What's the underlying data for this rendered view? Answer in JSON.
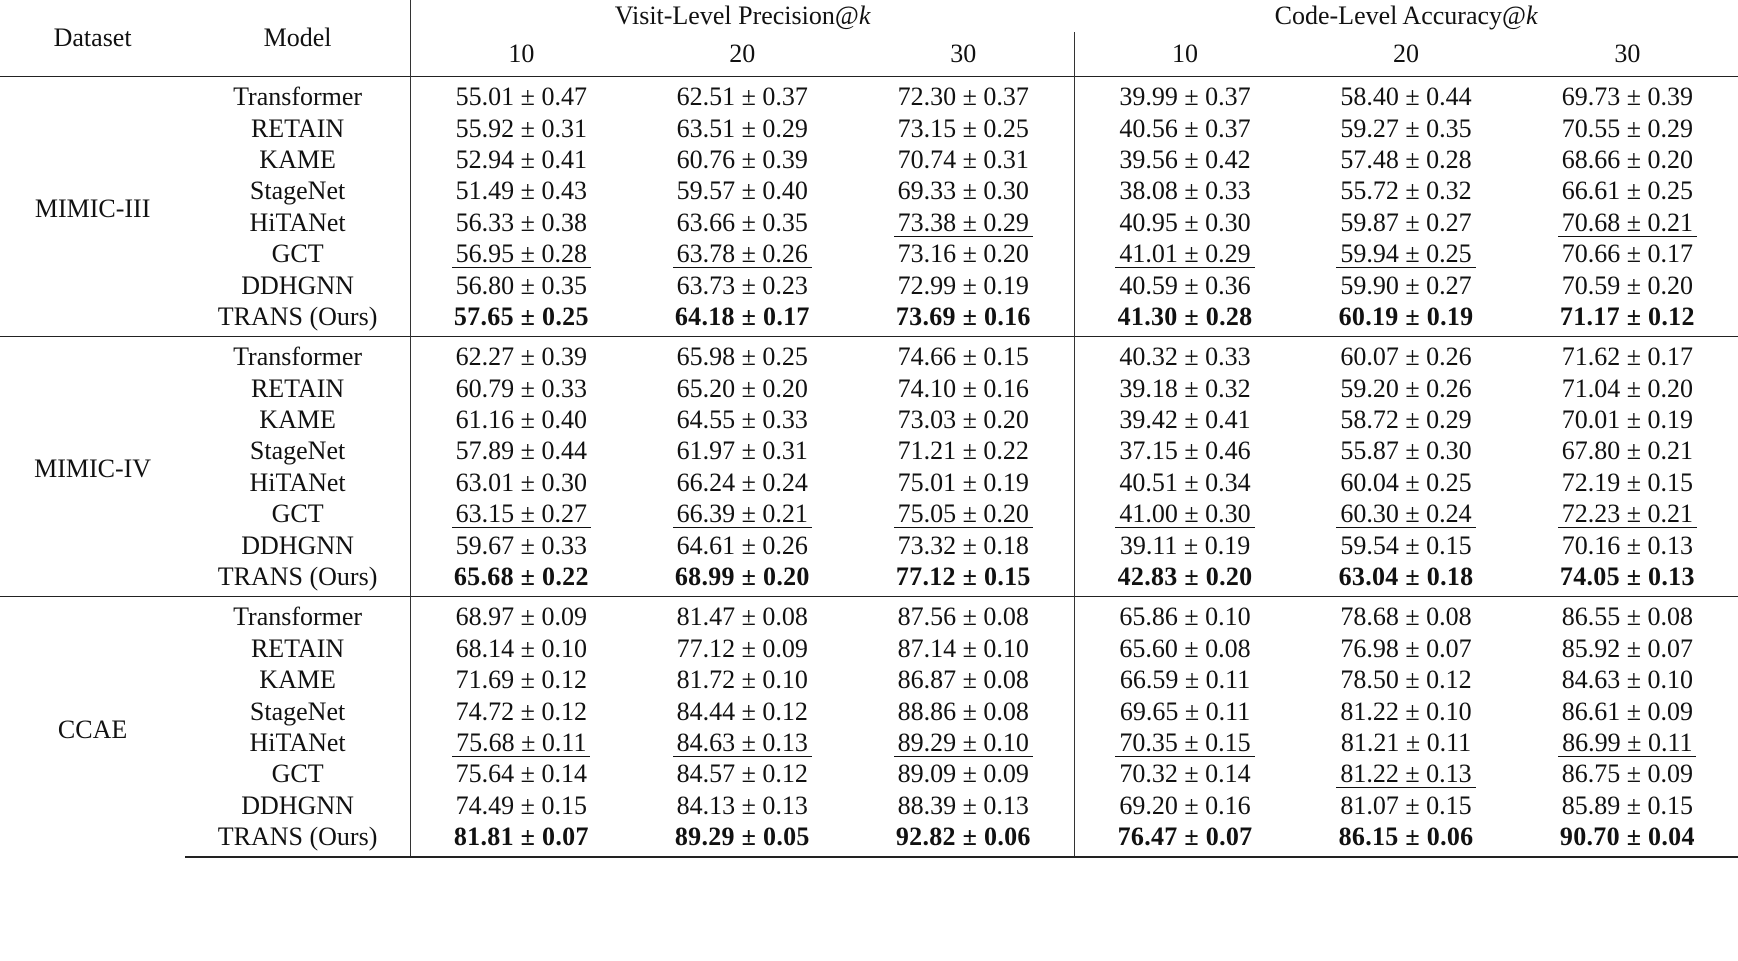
{
  "header": {
    "dataset": "Dataset",
    "model": "Model",
    "visit_group": "Visit-Level Precision@",
    "code_group": "Code-Level Accuracy@",
    "k_symbol": "k",
    "ks": [
      "10",
      "20",
      "30",
      "10",
      "20",
      "30"
    ]
  },
  "groups": [
    {
      "dataset": "MIMIC-III",
      "rows": [
        {
          "model": "Transformer",
          "cells": [
            {
              "v": "55.01 ± 0.47"
            },
            {
              "v": "62.51 ± 0.37"
            },
            {
              "v": "72.30 ± 0.37"
            },
            {
              "v": "39.99 ± 0.37"
            },
            {
              "v": "58.40 ± 0.44"
            },
            {
              "v": "69.73 ± 0.39"
            }
          ]
        },
        {
          "model": "RETAIN",
          "cells": [
            {
              "v": "55.92 ± 0.31"
            },
            {
              "v": "63.51 ± 0.29"
            },
            {
              "v": "73.15 ± 0.25"
            },
            {
              "v": "40.56 ± 0.37"
            },
            {
              "v": "59.27 ± 0.35"
            },
            {
              "v": "70.55 ± 0.29"
            }
          ]
        },
        {
          "model": "KAME",
          "cells": [
            {
              "v": "52.94 ± 0.41"
            },
            {
              "v": "60.76 ± 0.39"
            },
            {
              "v": "70.74 ± 0.31"
            },
            {
              "v": "39.56 ± 0.42"
            },
            {
              "v": "57.48 ± 0.28"
            },
            {
              "v": "68.66 ± 0.20"
            }
          ]
        },
        {
          "model": "StageNet",
          "cells": [
            {
              "v": "51.49 ± 0.43"
            },
            {
              "v": "59.57 ± 0.40"
            },
            {
              "v": "69.33 ± 0.30"
            },
            {
              "v": "38.08 ± 0.33"
            },
            {
              "v": "55.72 ± 0.32"
            },
            {
              "v": "66.61 ± 0.25"
            }
          ]
        },
        {
          "model": "HiTANet",
          "cells": [
            {
              "v": "56.33 ± 0.38"
            },
            {
              "v": "63.66 ± 0.35"
            },
            {
              "v": "73.38 ± 0.29",
              "u": true
            },
            {
              "v": "40.95 ± 0.30"
            },
            {
              "v": "59.87 ± 0.27"
            },
            {
              "v": "70.68 ± 0.21",
              "u": true
            }
          ]
        },
        {
          "model": "GCT",
          "cells": [
            {
              "v": "56.95 ± 0.28",
              "u": true
            },
            {
              "v": "63.78 ± 0.26",
              "u": true
            },
            {
              "v": "73.16 ± 0.20"
            },
            {
              "v": "41.01 ± 0.29",
              "u": true
            },
            {
              "v": "59.94 ± 0.25",
              "u": true
            },
            {
              "v": "70.66 ± 0.17"
            }
          ]
        },
        {
          "model": "DDHGNN",
          "cells": [
            {
              "v": "56.80 ± 0.35"
            },
            {
              "v": "63.73 ± 0.23"
            },
            {
              "v": "72.99 ± 0.19"
            },
            {
              "v": "40.59 ± 0.36"
            },
            {
              "v": "59.90 ± 0.27"
            },
            {
              "v": "70.59 ± 0.20"
            }
          ]
        },
        {
          "model": "TRANS (Ours)",
          "cells": [
            {
              "v": "57.65 ± 0.25",
              "b": true
            },
            {
              "v": "64.18 ± 0.17",
              "b": true
            },
            {
              "v": "73.69 ± 0.16",
              "b": true
            },
            {
              "v": "41.30 ± 0.28",
              "b": true
            },
            {
              "v": "60.19 ± 0.19",
              "b": true
            },
            {
              "v": "71.17 ± 0.12",
              "b": true
            }
          ]
        }
      ]
    },
    {
      "dataset": "MIMIC-IV",
      "rows": [
        {
          "model": "Transformer",
          "cells": [
            {
              "v": "62.27 ± 0.39"
            },
            {
              "v": "65.98 ± 0.25"
            },
            {
              "v": "74.66 ± 0.15"
            },
            {
              "v": "40.32 ± 0.33"
            },
            {
              "v": "60.07 ± 0.26"
            },
            {
              "v": "71.62 ± 0.17"
            }
          ]
        },
        {
          "model": "RETAIN",
          "cells": [
            {
              "v": "60.79 ± 0.33"
            },
            {
              "v": "65.20 ± 0.20"
            },
            {
              "v": "74.10 ± 0.16"
            },
            {
              "v": "39.18 ± 0.32"
            },
            {
              "v": "59.20 ± 0.26"
            },
            {
              "v": "71.04 ± 0.20"
            }
          ]
        },
        {
          "model": "KAME",
          "cells": [
            {
              "v": "61.16 ± 0.40"
            },
            {
              "v": "64.55 ± 0.33"
            },
            {
              "v": "73.03 ± 0.20"
            },
            {
              "v": "39.42 ± 0.41"
            },
            {
              "v": "58.72 ± 0.29"
            },
            {
              "v": "70.01 ± 0.19"
            }
          ]
        },
        {
          "model": "StageNet",
          "cells": [
            {
              "v": "57.89 ± 0.44"
            },
            {
              "v": "61.97 ± 0.31"
            },
            {
              "v": "71.21 ± 0.22"
            },
            {
              "v": "37.15 ± 0.46"
            },
            {
              "v": "55.87 ± 0.30"
            },
            {
              "v": "67.80 ± 0.21"
            }
          ]
        },
        {
          "model": "HiTANet",
          "cells": [
            {
              "v": "63.01 ± 0.30"
            },
            {
              "v": "66.24 ± 0.24"
            },
            {
              "v": "75.01 ± 0.19"
            },
            {
              "v": "40.51 ± 0.34"
            },
            {
              "v": "60.04 ± 0.25"
            },
            {
              "v": "72.19 ± 0.15"
            }
          ]
        },
        {
          "model": "GCT",
          "cells": [
            {
              "v": "63.15 ± 0.27",
              "u": true
            },
            {
              "v": "66.39 ± 0.21",
              "u": true
            },
            {
              "v": "75.05 ± 0.20",
              "u": true
            },
            {
              "v": "41.00 ± 0.30",
              "u": true
            },
            {
              "v": "60.30 ± 0.24",
              "u": true
            },
            {
              "v": "72.23 ± 0.21",
              "u": true
            }
          ]
        },
        {
          "model": "DDHGNN",
          "cells": [
            {
              "v": "59.67 ± 0.33"
            },
            {
              "v": "64.61 ± 0.26"
            },
            {
              "v": "73.32 ± 0.18"
            },
            {
              "v": "39.11 ± 0.19"
            },
            {
              "v": "59.54 ± 0.15"
            },
            {
              "v": "70.16 ± 0.13"
            }
          ]
        },
        {
          "model": "TRANS (Ours)",
          "cells": [
            {
              "v": "65.68 ± 0.22",
              "b": true
            },
            {
              "v": "68.99 ± 0.20",
              "b": true
            },
            {
              "v": "77.12 ± 0.15",
              "b": true
            },
            {
              "v": "42.83 ± 0.20",
              "b": true
            },
            {
              "v": "63.04 ± 0.18",
              "b": true
            },
            {
              "v": "74.05 ± 0.13",
              "b": true
            }
          ]
        }
      ]
    },
    {
      "dataset": "CCAE",
      "rows": [
        {
          "model": "Transformer",
          "cells": [
            {
              "v": "68.97 ± 0.09"
            },
            {
              "v": "81.47 ± 0.08"
            },
            {
              "v": "87.56 ± 0.08"
            },
            {
              "v": "65.86 ± 0.10"
            },
            {
              "v": "78.68 ± 0.08"
            },
            {
              "v": "86.55 ± 0.08"
            }
          ]
        },
        {
          "model": "RETAIN",
          "cells": [
            {
              "v": "68.14 ± 0.10"
            },
            {
              "v": "77.12 ± 0.09"
            },
            {
              "v": "87.14 ± 0.10"
            },
            {
              "v": "65.60 ± 0.08"
            },
            {
              "v": "76.98 ± 0.07"
            },
            {
              "v": "85.92 ± 0.07"
            }
          ]
        },
        {
          "model": "KAME",
          "cells": [
            {
              "v": "71.69 ± 0.12"
            },
            {
              "v": "81.72 ± 0.10"
            },
            {
              "v": "86.87 ± 0.08"
            },
            {
              "v": "66.59 ± 0.11"
            },
            {
              "v": "78.50 ± 0.12"
            },
            {
              "v": "84.63 ± 0.10"
            }
          ]
        },
        {
          "model": "StageNet",
          "cells": [
            {
              "v": "74.72 ± 0.12"
            },
            {
              "v": "84.44 ± 0.12"
            },
            {
              "v": "88.86 ± 0.08"
            },
            {
              "v": "69.65 ± 0.11"
            },
            {
              "v": "81.22 ± 0.10"
            },
            {
              "v": "86.61 ± 0.09"
            }
          ]
        },
        {
          "model": "HiTANet",
          "cells": [
            {
              "v": "75.68 ± 0.11",
              "u": true
            },
            {
              "v": "84.63 ± 0.13",
              "u": true
            },
            {
              "v": "89.29 ± 0.10",
              "u": true
            },
            {
              "v": "70.35 ± 0.15",
              "u": true
            },
            {
              "v": "81.21 ± 0.11"
            },
            {
              "v": "86.99 ± 0.11",
              "u": true
            }
          ]
        },
        {
          "model": "GCT",
          "cells": [
            {
              "v": "75.64 ± 0.14"
            },
            {
              "v": "84.57 ± 0.12"
            },
            {
              "v": "89.09 ± 0.09"
            },
            {
              "v": "70.32 ± 0.14"
            },
            {
              "v": "81.22 ± 0.13",
              "u": true
            },
            {
              "v": "86.75 ± 0.09"
            }
          ]
        },
        {
          "model": "DDHGNN",
          "cells": [
            {
              "v": "74.49 ± 0.15"
            },
            {
              "v": "84.13 ± 0.13"
            },
            {
              "v": "88.39 ± 0.13"
            },
            {
              "v": "69.20 ± 0.16"
            },
            {
              "v": "81.07 ± 0.15"
            },
            {
              "v": "85.89 ± 0.15"
            }
          ]
        },
        {
          "model": "TRANS (Ours)",
          "cells": [
            {
              "v": "81.81 ± 0.07",
              "b": true
            },
            {
              "v": "89.29 ± 0.05",
              "b": true
            },
            {
              "v": "92.82 ± 0.06",
              "b": true
            },
            {
              "v": "76.47 ± 0.07",
              "b": true
            },
            {
              "v": "86.15 ± 0.06",
              "b": true
            },
            {
              "v": "90.70 ± 0.04",
              "b": true
            }
          ]
        }
      ]
    }
  ]
}
